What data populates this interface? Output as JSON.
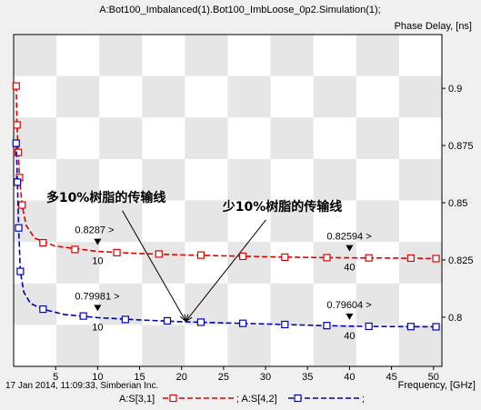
{
  "chart_data": {
    "type": "line",
    "title": "A:Bot100_Imbalanced(1).Bot100_ImbLoose_0p2.Simulation(1);",
    "ylabel": "Phase Delay, [ns]",
    "xlabel": "Frequency, [GHz]",
    "timestamp": "17 Jan 2014, 11:09:33, Simberian Inc.",
    "xlim": [
      0,
      51
    ],
    "ylim": [
      0.7785,
      0.9235
    ],
    "x_ticks": [
      5,
      10,
      15,
      20,
      25,
      30,
      35,
      40,
      45,
      50
    ],
    "y_ticks": [
      0.8,
      0.825,
      0.85,
      0.875,
      0.9
    ],
    "y_tick_labels": [
      "0.8",
      "0.825",
      "0.85",
      "0.875",
      "0.9"
    ],
    "grid": "checkerboard",
    "legend": {
      "text_1": "A:S[3,1]",
      "text_2": "; A:S[4,2]",
      "text_3": ";"
    },
    "series": [
      {
        "name": "A:S[3,1]",
        "color": "#e00000",
        "line": [
          [
            0.3,
            0.901
          ],
          [
            0.4,
            0.884
          ],
          [
            0.55,
            0.872
          ],
          [
            0.7,
            0.861
          ],
          [
            1.0,
            0.849
          ],
          [
            1.5,
            0.84
          ],
          [
            2.5,
            0.8345
          ],
          [
            5,
            0.831
          ],
          [
            10,
            0.8287
          ],
          [
            15,
            0.8278
          ],
          [
            20,
            0.8272
          ],
          [
            25,
            0.8268
          ],
          [
            30,
            0.8264
          ],
          [
            35,
            0.8261
          ],
          [
            40,
            0.82594
          ],
          [
            45,
            0.8258
          ],
          [
            50,
            0.8256
          ]
        ],
        "markers": [
          [
            0.3,
            0.901
          ],
          [
            0.4,
            0.884
          ],
          [
            0.55,
            0.872
          ],
          [
            0.7,
            0.861
          ],
          [
            1.0,
            0.849
          ],
          [
            3.5,
            0.8325
          ],
          [
            7.3,
            0.8296
          ],
          [
            12.3,
            0.8282
          ],
          [
            17.3,
            0.8276
          ],
          [
            22.3,
            0.8271
          ],
          [
            27.3,
            0.8266
          ],
          [
            32.3,
            0.8262
          ],
          [
            37.3,
            0.826
          ],
          [
            42.3,
            0.8259
          ],
          [
            47.3,
            0.8258
          ],
          [
            50.3,
            0.8256
          ]
        ]
      },
      {
        "name": "A:S[4,2]",
        "color": "#0000c0",
        "line": [
          [
            0.3,
            0.876
          ],
          [
            0.45,
            0.859
          ],
          [
            0.6,
            0.839
          ],
          [
            0.8,
            0.82
          ],
          [
            1.2,
            0.811
          ],
          [
            2,
            0.806
          ],
          [
            3.5,
            0.8035
          ],
          [
            6,
            0.8012
          ],
          [
            10,
            0.79981
          ],
          [
            15,
            0.7988
          ],
          [
            20,
            0.798
          ],
          [
            25,
            0.7975
          ],
          [
            30,
            0.797
          ],
          [
            35,
            0.7965
          ],
          [
            40,
            0.79604
          ],
          [
            45,
            0.7959
          ],
          [
            50,
            0.7958
          ]
        ],
        "markers": [
          [
            0.3,
            0.876
          ],
          [
            0.45,
            0.859
          ],
          [
            0.6,
            0.839
          ],
          [
            0.8,
            0.82
          ],
          [
            3.5,
            0.8035
          ],
          [
            8.3,
            0.8005
          ],
          [
            13.3,
            0.799
          ],
          [
            18.3,
            0.7984
          ],
          [
            22.3,
            0.7978
          ],
          [
            27.3,
            0.7973
          ],
          [
            32.3,
            0.7968
          ],
          [
            37.3,
            0.7963
          ],
          [
            42.3,
            0.796
          ],
          [
            47.3,
            0.7959
          ],
          [
            50.3,
            0.7958
          ]
        ]
      }
    ],
    "value_markers": [
      {
        "x": 10,
        "y": 0.8287,
        "label": "0.8287 >",
        "xlabel": "10",
        "color": "#e00000"
      },
      {
        "x": 40,
        "y": 0.82594,
        "label": "0.82594 >",
        "xlabel": "40",
        "color": "#e00000"
      },
      {
        "x": 10,
        "y": 0.79981,
        "label": "0.79981 >",
        "xlabel": "10",
        "color": "#0000c0"
      },
      {
        "x": 40,
        "y": 0.79604,
        "label": "0.79604 >",
        "xlabel": "40",
        "color": "#0000c0"
      }
    ],
    "annotations": [
      {
        "text": "多10%树脂的传输线",
        "text_anchor_data": [
          11,
          0.8505
        ],
        "arrow_to": [
          20.5,
          0.7982
        ]
      },
      {
        "text": "少10%树脂的传输线",
        "text_anchor_data": [
          32,
          0.8465
        ],
        "arrow_to": [
          20.5,
          0.7982
        ]
      }
    ]
  }
}
